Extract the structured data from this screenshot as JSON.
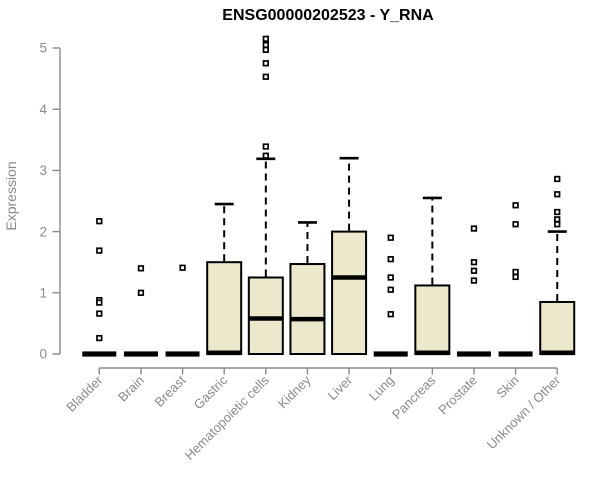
{
  "chart_data": {
    "type": "boxplot",
    "title": "ENSG00000202523 - Y_RNA",
    "xlabel": "",
    "ylabel": "Expression",
    "ylim": [
      0,
      5
    ],
    "yticks": [
      0,
      1,
      2,
      3,
      4,
      5
    ],
    "grid": false,
    "legend": "none",
    "box_fill": "#ece8cc",
    "box_stroke": "#000000",
    "axis_color": "#898989",
    "label_color": "#8a8a8a",
    "categories": [
      "Bladder",
      "Brain",
      "Breast",
      "Gastric",
      "Hematopoietic cells",
      "Kidney",
      "Liver",
      "Lung",
      "Pancreas",
      "Prostate",
      "Skin",
      "Unknown / Other"
    ],
    "boxes": [
      {
        "category": "Bladder",
        "q1": 0,
        "median": 0,
        "q3": 0,
        "whisker_low": 0,
        "whisker_high": 0,
        "outliers": [
          2.17,
          1.69,
          0.88,
          0.84,
          0.66,
          0.26
        ]
      },
      {
        "category": "Brain",
        "q1": 0,
        "median": 0,
        "q3": 0,
        "whisker_low": 0,
        "whisker_high": 0,
        "outliers": [
          1.4,
          1.0
        ]
      },
      {
        "category": "Breast",
        "q1": 0,
        "median": 0,
        "q3": 0,
        "whisker_low": 0,
        "whisker_high": 0,
        "outliers": [
          1.41
        ]
      },
      {
        "category": "Gastric",
        "q1": 0,
        "median": 0.02,
        "q3": 1.5,
        "whisker_low": 0,
        "whisker_high": 2.45,
        "outliers": []
      },
      {
        "category": "Hematopoietic cells",
        "q1": 0,
        "median": 0.58,
        "q3": 1.25,
        "whisker_low": 0,
        "whisker_high": 3.19,
        "outliers": [
          5.15,
          5.05,
          4.97,
          4.75,
          4.53,
          3.39,
          3.24
        ]
      },
      {
        "category": "Kidney",
        "q1": 0,
        "median": 0.57,
        "q3": 1.47,
        "whisker_low": 0,
        "whisker_high": 2.15,
        "outliers": []
      },
      {
        "category": "Liver",
        "q1": 0,
        "median": 1.25,
        "q3": 2.0,
        "whisker_low": 0,
        "whisker_high": 3.2,
        "outliers": []
      },
      {
        "category": "Lung",
        "q1": 0,
        "median": 0,
        "q3": 0,
        "whisker_low": 0,
        "whisker_high": 0,
        "outliers": [
          1.9,
          1.55,
          1.25,
          1.05,
          0.65
        ]
      },
      {
        "category": "Pancreas",
        "q1": 0,
        "median": 0.02,
        "q3": 1.12,
        "whisker_low": 0,
        "whisker_high": 2.55,
        "outliers": []
      },
      {
        "category": "Prostate",
        "q1": 0,
        "median": 0,
        "q3": 0,
        "whisker_low": 0,
        "whisker_high": 0,
        "outliers": [
          2.05,
          1.5,
          1.36,
          1.2
        ]
      },
      {
        "category": "Skin",
        "q1": 0,
        "median": 0,
        "q3": 0,
        "whisker_low": 0,
        "whisker_high": 0,
        "outliers": [
          2.43,
          2.12,
          1.34,
          1.26
        ]
      },
      {
        "category": "Unknown / Other",
        "q1": 0,
        "median": 0.02,
        "q3": 0.85,
        "whisker_low": 0,
        "whisker_high": 2.0,
        "outliers": [
          2.86,
          2.61,
          2.32,
          2.2,
          2.12
        ]
      }
    ]
  }
}
